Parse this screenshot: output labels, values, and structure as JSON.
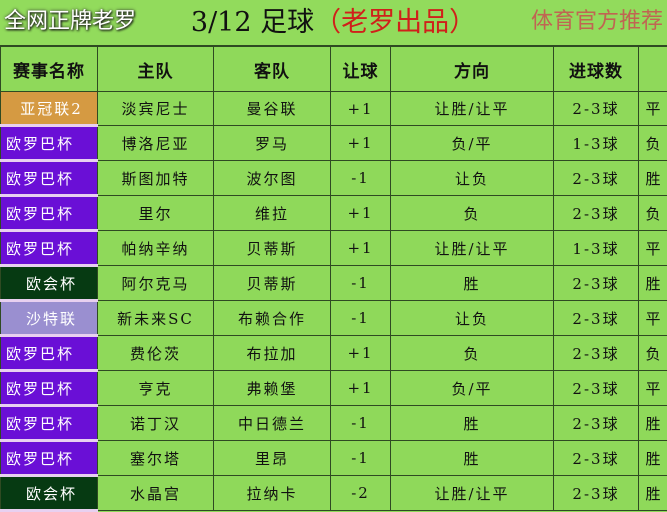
{
  "title": {
    "date": "3/12 足球",
    "author": "（老罗出品）"
  },
  "headers": [
    "赛事名称",
    "主队",
    "客队",
    "让球",
    "方向",
    "进球数",
    ""
  ],
  "rows": [
    {
      "comp": "亚冠联2",
      "type": "acl",
      "home": "淡宾尼士",
      "away": "曼谷联",
      "hcp": "+1",
      "dir": "让胜/让平",
      "goals": "2-3球",
      "extra": "平"
    },
    {
      "comp": "欧罗巴杯",
      "type": "uel",
      "home": "博洛尼亚",
      "away": "罗马",
      "hcp": "+1",
      "dir": "负/平",
      "goals": "1-3球",
      "extra": "负"
    },
    {
      "comp": "欧罗巴杯",
      "type": "uel",
      "home": "斯图加特",
      "away": "波尔图",
      "hcp": "-1",
      "dir": "让负",
      "goals": "2-3球",
      "extra": "胜"
    },
    {
      "comp": "欧罗巴杯",
      "type": "uel",
      "home": "里尔",
      "away": "维拉",
      "hcp": "+1",
      "dir": "负",
      "goals": "2-3球",
      "extra": "负"
    },
    {
      "comp": "欧罗巴杯",
      "type": "uel",
      "home": "帕纳辛纳",
      "away": "贝蒂斯",
      "hcp": "+1",
      "dir": "让胜/让平",
      "goals": "1-3球",
      "extra": "平"
    },
    {
      "comp": "欧会杯",
      "type": "uecl",
      "home": "阿尔克马",
      "away": "贝蒂斯",
      "hcp": "-1",
      "dir": "胜",
      "goals": "2-3球",
      "extra": "胜"
    },
    {
      "comp": "沙特联",
      "type": "spl",
      "home": "新未来SC",
      "away": "布赖合作",
      "hcp": "-1",
      "dir": "让负",
      "goals": "2-3球",
      "extra": "平"
    },
    {
      "comp": "欧罗巴杯",
      "type": "uel",
      "home": "费伦茨",
      "away": "布拉加",
      "hcp": "+1",
      "dir": "负",
      "goals": "2-3球",
      "extra": "负"
    },
    {
      "comp": "欧罗巴杯",
      "type": "uel",
      "home": "亨克",
      "away": "弗赖堡",
      "hcp": "+1",
      "dir": "负/平",
      "goals": "2-3球",
      "extra": "平"
    },
    {
      "comp": "欧罗巴杯",
      "type": "uel",
      "home": "诺丁汉",
      "away": "中日德兰",
      "hcp": "-1",
      "dir": "胜",
      "goals": "2-3球",
      "extra": "胜"
    },
    {
      "comp": "欧罗巴杯",
      "type": "uel",
      "home": "塞尔塔",
      "away": "里昂",
      "hcp": "-1",
      "dir": "胜",
      "goals": "2-3球",
      "extra": "胜"
    },
    {
      "comp": "欧会杯",
      "type": "uecl",
      "home": "水晶宫",
      "away": "拉纳卡",
      "hcp": "-2",
      "dir": "让胜/让平",
      "goals": "2-3球",
      "extra": "胜"
    }
  ],
  "overlay": {
    "subtitle": "全网正牌老罗",
    "watermark": "体育官方推荐"
  },
  "colors": {
    "background": "#8fd95a",
    "acl": "#d59a42",
    "uel": "#6a0fd6",
    "uecl": "#063a12",
    "spl": "#9a8fd0",
    "title_accent": "#d0201a"
  }
}
